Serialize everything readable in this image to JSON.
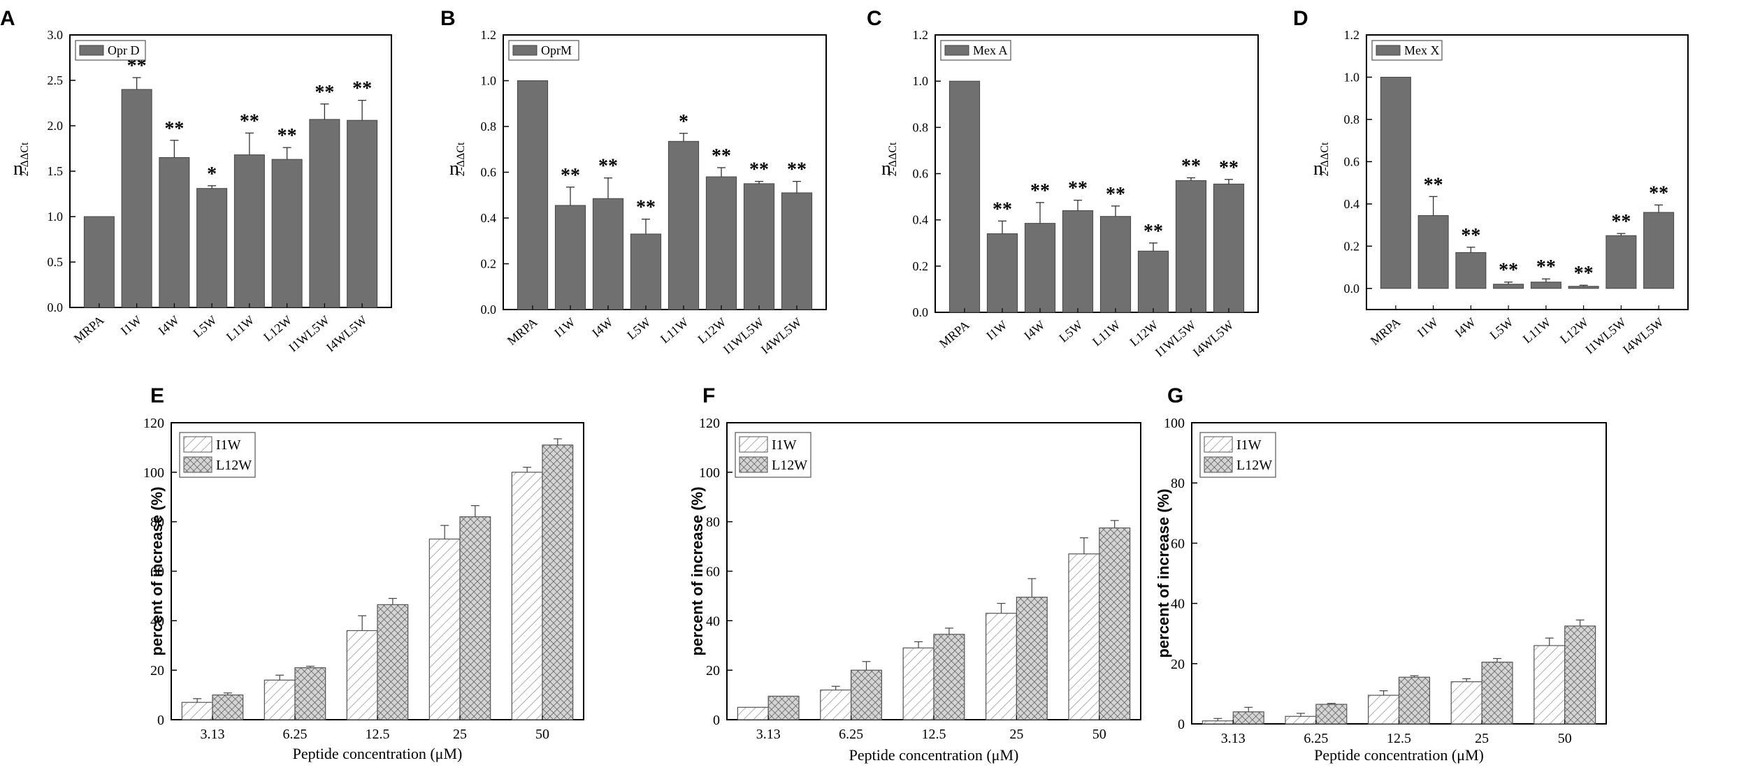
{
  "figure": {
    "description_free": true
  },
  "chart_data": [
    {
      "panel": "A",
      "type": "bar",
      "categories": [
        "MRPA",
        "I1W",
        "I4W",
        "L5W",
        "L11W",
        "L12W",
        "I1WL5W",
        "I4WL5W"
      ],
      "values": [
        1.0,
        2.4,
        1.65,
        1.31,
        1.68,
        1.63,
        2.07,
        2.06
      ],
      "errors": [
        0,
        0.13,
        0.19,
        0.03,
        0.24,
        0.13,
        0.17,
        0.22
      ],
      "significance": [
        "",
        "**",
        "**",
        "*",
        "**",
        "**",
        "**",
        "**"
      ],
      "legend": "Opr D",
      "ylabel": "n",
      "ylabel_sup": "2-ΔΔCt",
      "ylim": [
        0,
        3.0
      ],
      "yticks": [
        "0.0",
        "0.5",
        "1.0",
        "1.5",
        "2.0",
        "2.5",
        "3.0"
      ],
      "color": "#707070"
    },
    {
      "panel": "B",
      "type": "bar",
      "categories": [
        "MRPA",
        "I1W",
        "I4W",
        "L5W",
        "L11W",
        "L12W",
        "I1WL5W",
        "I4WL5W"
      ],
      "values": [
        1.0,
        0.455,
        0.485,
        0.33,
        0.735,
        0.58,
        0.55,
        0.51
      ],
      "errors": [
        0,
        0.08,
        0.09,
        0.065,
        0.035,
        0.04,
        0.01,
        0.05
      ],
      "significance": [
        "",
        "**",
        "**",
        "**",
        "*",
        "**",
        "**",
        "**"
      ],
      "legend": "OprM",
      "ylabel": "n",
      "ylabel_sup": "2-ΔΔCt",
      "ylim": [
        0,
        1.2
      ],
      "yticks": [
        "0.0",
        "0.2",
        "0.4",
        "0.6",
        "0.8",
        "1.0",
        "1.2"
      ],
      "color": "#707070"
    },
    {
      "panel": "C",
      "type": "bar",
      "categories": [
        "MRPA",
        "I1W",
        "I4W",
        "L5W",
        "L11W",
        "L12W",
        "I1WL5W",
        "I4WL5W"
      ],
      "values": [
        1.0,
        0.34,
        0.385,
        0.44,
        0.415,
        0.265,
        0.57,
        0.555
      ],
      "errors": [
        0,
        0.055,
        0.09,
        0.045,
        0.045,
        0.035,
        0.012,
        0.02
      ],
      "significance": [
        "",
        "**",
        "**",
        "**",
        "**",
        "**",
        "**",
        "**"
      ],
      "legend": "Mex A",
      "ylabel": "n",
      "ylabel_sup": "2-ΔΔCt",
      "ylim": [
        0,
        1.2
      ],
      "yticks": [
        "0.0",
        "0.2",
        "0.4",
        "0.6",
        "0.8",
        "1.0",
        "1.2"
      ],
      "color": "#707070"
    },
    {
      "panel": "D",
      "type": "bar",
      "categories": [
        "MRPA",
        "I1W",
        "I4W",
        "L5W",
        "L11W",
        "L12W",
        "I1WL5W",
        "I4WL5W"
      ],
      "values": [
        1.0,
        0.345,
        0.17,
        0.02,
        0.03,
        0.01,
        0.25,
        0.36
      ],
      "errors": [
        0,
        0.09,
        0.025,
        0.01,
        0.015,
        0.005,
        0.01,
        0.035
      ],
      "significance": [
        "",
        "**",
        "**",
        "**",
        "**",
        "**",
        "**",
        "**"
      ],
      "legend": "Mex X",
      "ylabel": "n",
      "ylabel_sup": "2-ΔΔCt",
      "ylim": [
        -0.1,
        1.2
      ],
      "yticks": [
        "0.0",
        "0.2",
        "0.4",
        "0.6",
        "0.8",
        "1.0",
        "1.2"
      ],
      "color": "#707070"
    },
    {
      "panel": "E",
      "type": "bar",
      "categories": [
        "3.13",
        "6.25",
        "12.5",
        "25",
        "50"
      ],
      "series": [
        {
          "name": "I1W",
          "values": [
            7,
            16,
            36,
            73,
            100
          ],
          "errors": [
            1.5,
            2,
            6,
            5.5,
            2
          ]
        },
        {
          "name": "L12W",
          "values": [
            10,
            21,
            46.5,
            82,
            111
          ],
          "errors": [
            0.8,
            0.6,
            2.5,
            4.5,
            2.5
          ]
        }
      ],
      "xlabel": "Peptide concentration (μM)",
      "ylabel": "percent of increase (%)",
      "ylim": [
        0,
        120
      ],
      "yticks": [
        "0",
        "20",
        "40",
        "60",
        "80",
        "100",
        "120"
      ]
    },
    {
      "panel": "F",
      "type": "bar",
      "categories": [
        "3.13",
        "6.25",
        "12.5",
        "25",
        "50"
      ],
      "series": [
        {
          "name": "I1W",
          "values": [
            5,
            12,
            29,
            43,
            67
          ],
          "errors": [
            0,
            1.5,
            2.5,
            4,
            6.5
          ]
        },
        {
          "name": "L12W",
          "values": [
            9.5,
            20,
            34.5,
            49.5,
            77.5
          ],
          "errors": [
            0,
            3.5,
            2.5,
            7.5,
            3
          ]
        }
      ],
      "xlabel": "Peptide concentration (μM)",
      "ylabel": "percent of increase (%)",
      "ylim": [
        0,
        120
      ],
      "yticks": [
        "0",
        "20",
        "40",
        "60",
        "80",
        "100",
        "120"
      ]
    },
    {
      "panel": "G",
      "type": "bar",
      "categories": [
        "3.13",
        "6.25",
        "12.5",
        "25",
        "50"
      ],
      "series": [
        {
          "name": "I1W",
          "values": [
            1,
            2.5,
            9.5,
            14,
            26
          ],
          "errors": [
            0.8,
            1,
            1.5,
            1,
            2.5
          ]
        },
        {
          "name": "L12W",
          "values": [
            4,
            6.5,
            15.5,
            20.5,
            32.5
          ],
          "errors": [
            1.5,
            0.3,
            0.5,
            1.2,
            2
          ]
        }
      ],
      "xlabel": "Peptide concentration (μM)",
      "ylabel": "percent of increase (%)",
      "ylim": [
        0,
        100
      ],
      "yticks": [
        "0",
        "20",
        "40",
        "60",
        "80",
        "100"
      ]
    }
  ]
}
